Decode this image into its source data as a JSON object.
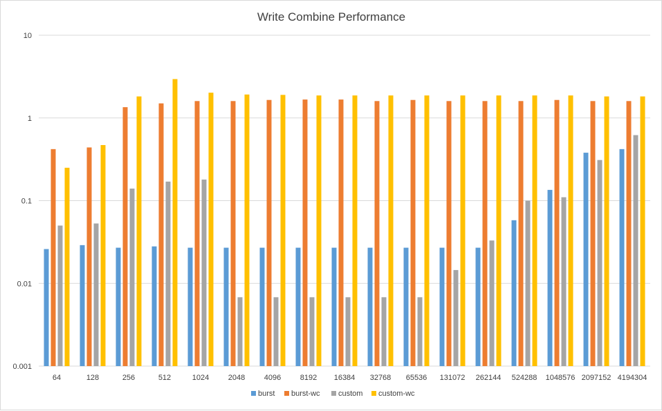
{
  "chart_data": {
    "type": "bar",
    "title": "Write Combine Performance",
    "yscale": "log",
    "ylim": [
      0.001,
      10
    ],
    "yticks": [
      "10",
      "1",
      "0.1",
      "0.01",
      "0.001"
    ],
    "yticks_values": [
      10,
      1,
      0.1,
      0.01,
      0.001
    ],
    "grid": true,
    "legend_position": "bottom",
    "categories": [
      "64",
      "128",
      "256",
      "512",
      "1024",
      "2048",
      "4096",
      "8192",
      "16384",
      "32768",
      "65536",
      "131072",
      "262144",
      "524288",
      "1048576",
      "2097152",
      "4194304"
    ],
    "series": [
      {
        "name": "burst",
        "color": "#5b9bd5",
        "values": [
          0.026,
          0.029,
          0.027,
          0.028,
          0.027,
          0.027,
          0.027,
          0.027,
          0.027,
          0.027,
          0.027,
          0.027,
          0.027,
          0.058,
          0.135,
          0.38,
          0.42
        ]
      },
      {
        "name": "burst-wc",
        "color": "#ed7d31",
        "values": [
          0.42,
          0.44,
          1.35,
          1.5,
          1.6,
          1.6,
          1.65,
          1.67,
          1.67,
          1.6,
          1.65,
          1.6,
          1.6,
          1.6,
          1.65,
          1.6,
          1.6
        ]
      },
      {
        "name": "custom",
        "color": "#a5a5a5",
        "values": [
          0.05,
          0.053,
          0.14,
          0.17,
          0.18,
          0.0068,
          0.0068,
          0.0068,
          0.0068,
          0.0068,
          0.0068,
          0.0145,
          0.033,
          0.1,
          0.11,
          0.31,
          0.62
        ]
      },
      {
        "name": "custom-wc",
        "color": "#ffc000",
        "values": [
          0.25,
          0.47,
          1.82,
          2.95,
          2.02,
          1.92,
          1.9,
          1.87,
          1.87,
          1.87,
          1.87,
          1.87,
          1.87,
          1.87,
          1.87,
          1.82,
          1.82
        ]
      }
    ]
  }
}
